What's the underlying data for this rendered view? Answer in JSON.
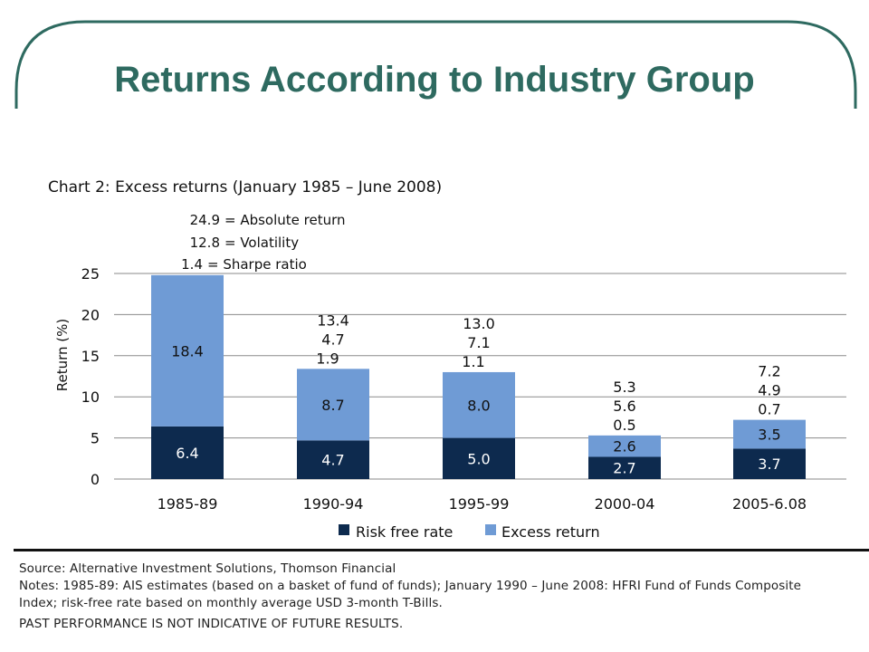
{
  "slide": {
    "title": "Returns According to Industry Group"
  },
  "chart_data": {
    "type": "bar",
    "stacked": true,
    "title": "Chart 2: Excess returns (January 1985 – June 2008)",
    "ylabel": "Return (%)",
    "xlabel": "",
    "ylim": [
      0,
      25
    ],
    "yticks": [
      0,
      5,
      10,
      15,
      20,
      25
    ],
    "grid": true,
    "legend_position": "bottom",
    "categories": [
      "1985-89",
      "1990-94",
      "1995-99",
      "2000-04",
      "2005-6.08"
    ],
    "series": [
      {
        "name": "Risk free rate",
        "color": "#0d2a4e",
        "values": [
          6.4,
          4.7,
          5.0,
          2.7,
          3.7
        ]
      },
      {
        "name": "Excess return",
        "color": "#6f9bd5",
        "values": [
          18.4,
          8.7,
          8.0,
          2.6,
          3.5
        ]
      }
    ],
    "annotations": {
      "absolute_return": [
        24.9,
        13.4,
        13.0,
        5.3,
        7.2
      ],
      "volatility": [
        12.8,
        4.7,
        7.1,
        5.6,
        4.9
      ],
      "sharpe_ratio": [
        1.4,
        1.9,
        1.1,
        0.5,
        0.7
      ]
    },
    "key": [
      {
        "value": "24.9",
        "label": "= Absolute return"
      },
      {
        "value": "12.8",
        "label": "= Volatility"
      },
      {
        "value": "1.4",
        "label": "= Sharpe ratio"
      }
    ]
  },
  "footer": {
    "source": "Source: Alternative Investment Solutions, Thomson Financial",
    "notes_line1": "Notes: 1985-89: AIS estimates (based on a basket of fund of funds); January 1990 – June 2008: HFRI Fund of Funds Composite",
    "notes_line2": "Index; risk-free rate based on monthly average USD 3-month T-Bills.",
    "disclaimer": "PAST PERFORMANCE IS NOT INDICATIVE OF FUTURE RESULTS."
  },
  "colors": {
    "title": "#2e6a60",
    "frame": "#2e6a60"
  }
}
